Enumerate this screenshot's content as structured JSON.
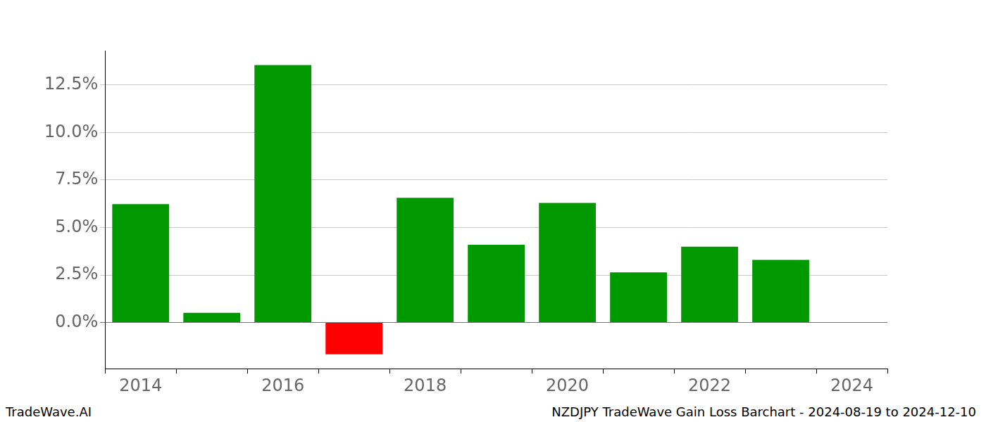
{
  "chart_data": {
    "type": "bar",
    "title": "NZDJPY TradeWave Gain Loss Barchart - 2024-08-19 to 2024-12-10",
    "annotations": [
      "TradeWave.AI"
    ],
    "categories": [
      "2014",
      null,
      "2016",
      null,
      "2018",
      null,
      "2020",
      null,
      "2022",
      null,
      "2024"
    ],
    "values": [
      6.23,
      0.51,
      13.55,
      -1.67,
      6.56,
      4.09,
      6.3,
      2.64,
      3.99,
      3.3,
      null
    ],
    "colors": [
      "#009900",
      "#009900",
      "#009900",
      "#ff0000",
      "#009900",
      "#009900",
      "#009900",
      "#009900",
      "#009900",
      "#009900",
      "#009900"
    ],
    "ylim": [
      -2.43,
      14.31
    ],
    "yticks": [
      {
        "value": 0,
        "label": "0.0%"
      },
      {
        "value": 2.5,
        "label": "2.5%"
      },
      {
        "value": 5,
        "label": "5.0%"
      },
      {
        "value": 7.5,
        "label": "7.5%"
      },
      {
        "value": 10,
        "label": "10.0%"
      },
      {
        "value": 12.5,
        "label": "12.5%"
      }
    ],
    "grid": true
  }
}
